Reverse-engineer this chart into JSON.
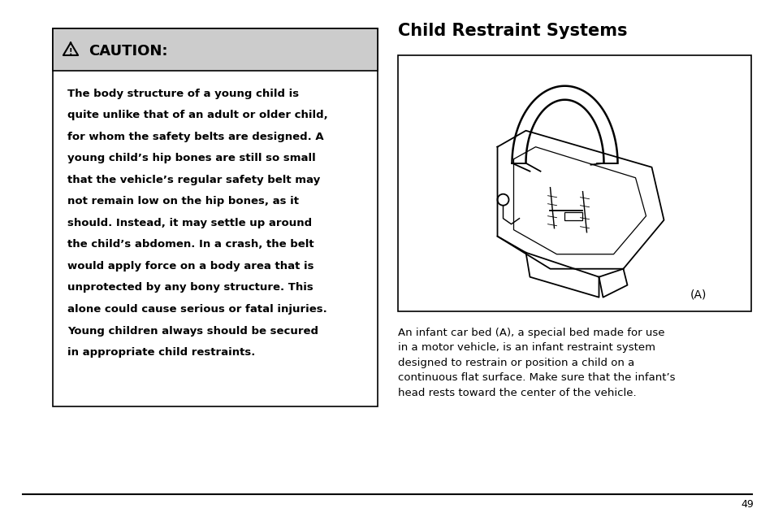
{
  "bg_color": "#ffffff",
  "page_number": "49",
  "title": "Child Restraint Systems",
  "title_fontsize": 15,
  "caution_bg": "#cccccc",
  "caution_box_border": "#000000",
  "caution_header_text": "CAUTION:",
  "caution_header_fontsize": 13,
  "caution_text_lines": [
    "The body structure of a young child is",
    "quite unlike that of an adult or older child,",
    "for whom the safety belts are designed. A",
    "young child’s hip bones are still so small",
    "that the vehicle’s regular safety belt may",
    "not remain low on the hip bones, as it",
    "should. Instead, it may settle up around",
    "the child’s abdomen. In a crash, the belt",
    "would apply force on a body area that is",
    "unprotected by any bony structure. This",
    "alone could cause serious or fatal injuries.",
    "Young children always should be secured",
    "in appropriate child restraints."
  ],
  "caution_text_fontsize": 9.5,
  "description_text": "An infant car bed (A), a special bed made for use\nin a motor vehicle, is an infant restraint system\ndesigned to restrain or position a child on a\ncontinuous flat surface. Make sure that the infant’s\nhead rests toward the center of the vehicle.",
  "description_fontsize": 9.5,
  "line_color": "#000000",
  "image_label": "(A)"
}
